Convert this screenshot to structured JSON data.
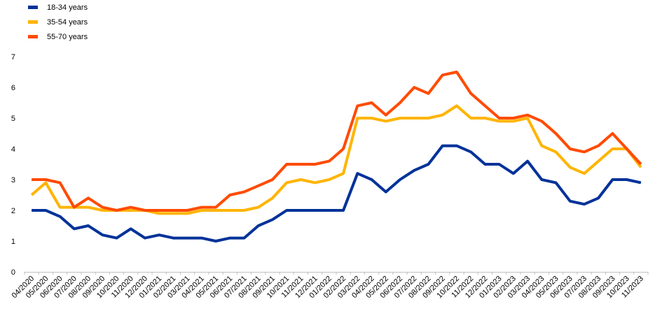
{
  "chart_data": {
    "type": "line",
    "title": "",
    "xlabel": "",
    "ylabel": "",
    "ylim": [
      0,
      7
    ],
    "yticks": [
      0,
      1,
      2,
      3,
      4,
      5,
      6,
      7
    ],
    "grid": false,
    "legend_position": "top-left",
    "categories": [
      "04/2020",
      "05/2020",
      "06/2020",
      "07/2020",
      "08/2020",
      "09/2020",
      "10/2020",
      "11/2020",
      "12/2020",
      "01/2021",
      "02/2021",
      "03/2021",
      "04/2021",
      "05/2021",
      "06/2021",
      "07/2021",
      "08/2021",
      "09/2021",
      "10/2021",
      "11/2021",
      "12/2021",
      "01/2022",
      "02/2022",
      "03/2022",
      "04/2022",
      "05/2022",
      "06/2022",
      "07/2022",
      "08/2022",
      "09/2022",
      "10/2022",
      "11/2022",
      "12/2022",
      "01/2023",
      "02/2023",
      "03/2023",
      "04/2023",
      "05/2023",
      "06/2023",
      "07/2023",
      "08/2023",
      "09/2023",
      "10/2023",
      "11/2023"
    ],
    "series": [
      {
        "name": "18-34 years",
        "color": "#003299",
        "values": [
          2.0,
          2.0,
          1.8,
          1.4,
          1.5,
          1.2,
          1.1,
          1.4,
          1.1,
          1.2,
          1.1,
          1.1,
          1.1,
          1.0,
          1.1,
          1.1,
          1.5,
          1.7,
          2.0,
          2.0,
          2.0,
          2.0,
          2.0,
          3.2,
          3.0,
          2.6,
          3.0,
          3.3,
          3.5,
          4.1,
          4.1,
          3.9,
          3.5,
          3.5,
          3.2,
          3.6,
          3.0,
          2.9,
          2.3,
          2.2,
          2.4,
          3.0,
          3.0,
          2.9
        ]
      },
      {
        "name": "35-54 years",
        "color": "#FFB400",
        "values": [
          2.5,
          2.9,
          2.1,
          2.1,
          2.1,
          2.0,
          2.0,
          2.0,
          2.0,
          1.9,
          1.9,
          1.9,
          2.0,
          2.0,
          2.0,
          2.0,
          2.1,
          2.4,
          2.9,
          3.0,
          2.9,
          3.0,
          3.2,
          5.0,
          5.0,
          4.9,
          5.0,
          5.0,
          5.0,
          5.1,
          5.4,
          5.0,
          5.0,
          4.9,
          4.9,
          5.0,
          4.1,
          3.9,
          3.4,
          3.2,
          3.6,
          4.0,
          4.0,
          3.4
        ]
      },
      {
        "name": "55-70 years",
        "color": "#FF4B00",
        "values": [
          3.0,
          3.0,
          2.9,
          2.1,
          2.4,
          2.1,
          2.0,
          2.1,
          2.0,
          2.0,
          2.0,
          2.0,
          2.1,
          2.1,
          2.5,
          2.6,
          2.8,
          3.0,
          3.5,
          3.5,
          3.5,
          3.6,
          4.0,
          5.4,
          5.5,
          5.1,
          5.5,
          6.0,
          5.8,
          6.4,
          6.5,
          5.8,
          5.4,
          5.0,
          5.0,
          5.1,
          4.9,
          4.5,
          4.0,
          3.9,
          4.1,
          4.5,
          4.0,
          3.5
        ]
      }
    ]
  }
}
